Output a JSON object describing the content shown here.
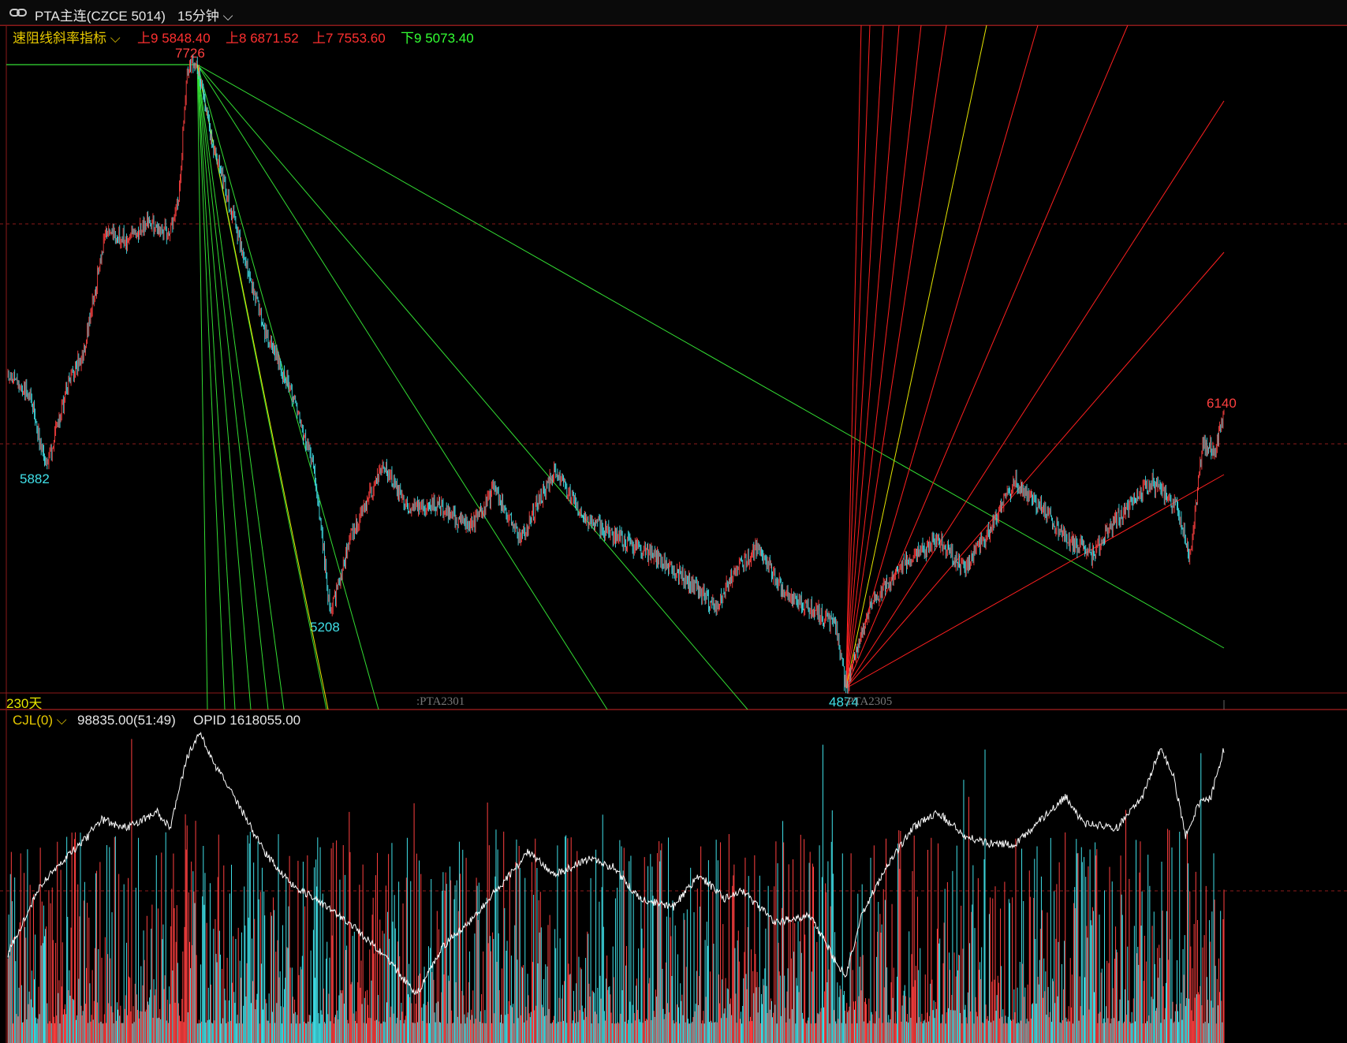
{
  "header": {
    "symbol": "PTA主连(CZCE 5014)",
    "period": "15分钟"
  },
  "main_panel": {
    "indicator_name": "速阻线斜率指标",
    "levels": [
      {
        "label": "上9",
        "value": "5848.40",
        "color": "#ff3030"
      },
      {
        "label": "上8",
        "value": "6871.52",
        "color": "#ff3030"
      },
      {
        "label": "上7",
        "value": "7553.60",
        "color": "#ff3030"
      },
      {
        "label": "下9",
        "value": "5073.40",
        "color": "#33ff33"
      }
    ],
    "days_label": "230天",
    "contract_labels": [
      ":PTA2301",
      ":PTA2305"
    ]
  },
  "volume_panel": {
    "indicator_name": "CJL(0)",
    "volume_text": "98835.00(51:49)",
    "opid_label": "OPID",
    "opid_value": "1618055.00"
  },
  "colors": {
    "up": "#ff4040",
    "down": "#40e0e8",
    "grid": "#8b1a1a",
    "fan_green": "#33dd33",
    "fan_yellow": "#e6e600",
    "fan_red": "#ff2020",
    "oi_line": "#ffffff"
  },
  "chart_data": {
    "type": "candlestick",
    "period": "15分钟",
    "price_ylim": [
      4874,
      7726
    ],
    "extreme_labels": [
      {
        "label": "7726",
        "value": 7726,
        "kind": "high"
      },
      {
        "label": "5882",
        "value": 5882,
        "kind": "low"
      },
      {
        "label": "5208",
        "value": 5208,
        "kind": "low"
      },
      {
        "label": "4874",
        "value": 4874,
        "kind": "low"
      },
      {
        "label": "6140",
        "value": 6140,
        "kind": "high"
      }
    ],
    "price_path": [
      {
        "i": 0,
        "p": 6300
      },
      {
        "i": 25,
        "p": 6220
      },
      {
        "i": 45,
        "p": 5882
      },
      {
        "i": 70,
        "p": 6260
      },
      {
        "i": 90,
        "p": 6420
      },
      {
        "i": 100,
        "p": 6650
      },
      {
        "i": 115,
        "p": 6980
      },
      {
        "i": 140,
        "p": 6920
      },
      {
        "i": 165,
        "p": 7000
      },
      {
        "i": 190,
        "p": 6960
      },
      {
        "i": 200,
        "p": 7100
      },
      {
        "i": 210,
        "p": 7700
      },
      {
        "i": 222,
        "p": 7726
      },
      {
        "i": 240,
        "p": 7350
      },
      {
        "i": 270,
        "p": 6950
      },
      {
        "i": 300,
        "p": 6520
      },
      {
        "i": 330,
        "p": 6250
      },
      {
        "i": 360,
        "p": 5850
      },
      {
        "i": 378,
        "p": 5208
      },
      {
        "i": 400,
        "p": 5550
      },
      {
        "i": 440,
        "p": 5900
      },
      {
        "i": 470,
        "p": 5700
      },
      {
        "i": 500,
        "p": 5720
      },
      {
        "i": 540,
        "p": 5600
      },
      {
        "i": 570,
        "p": 5780
      },
      {
        "i": 600,
        "p": 5560
      },
      {
        "i": 640,
        "p": 5860
      },
      {
        "i": 680,
        "p": 5640
      },
      {
        "i": 720,
        "p": 5550
      },
      {
        "i": 760,
        "p": 5480
      },
      {
        "i": 800,
        "p": 5350
      },
      {
        "i": 830,
        "p": 5240
      },
      {
        "i": 850,
        "p": 5400
      },
      {
        "i": 880,
        "p": 5520
      },
      {
        "i": 910,
        "p": 5300
      },
      {
        "i": 950,
        "p": 5220
      },
      {
        "i": 970,
        "p": 5150
      },
      {
        "i": 982,
        "p": 4874
      },
      {
        "i": 1010,
        "p": 5250
      },
      {
        "i": 1050,
        "p": 5450
      },
      {
        "i": 1090,
        "p": 5550
      },
      {
        "i": 1120,
        "p": 5420
      },
      {
        "i": 1150,
        "p": 5600
      },
      {
        "i": 1180,
        "p": 5820
      },
      {
        "i": 1210,
        "p": 5700
      },
      {
        "i": 1240,
        "p": 5560
      },
      {
        "i": 1270,
        "p": 5480
      },
      {
        "i": 1300,
        "p": 5650
      },
      {
        "i": 1340,
        "p": 5820
      },
      {
        "i": 1370,
        "p": 5700
      },
      {
        "i": 1385,
        "p": 5480
      },
      {
        "i": 1400,
        "p": 5980
      },
      {
        "i": 1415,
        "p": 5960
      },
      {
        "i": 1425,
        "p": 6140
      }
    ]
  }
}
